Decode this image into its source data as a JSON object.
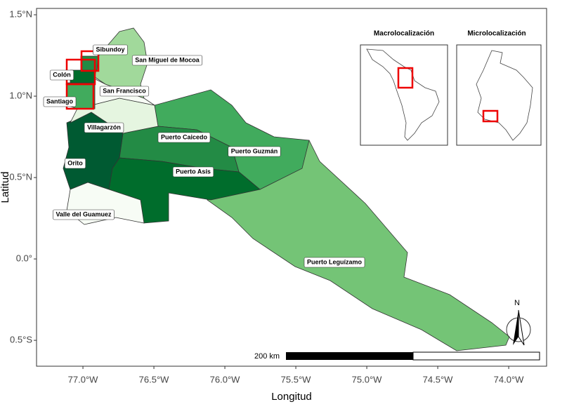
{
  "map": {
    "xlabel": "Longitud",
    "ylabel": "Latitud",
    "xlim": [
      -77.327,
      -73.733
    ],
    "ylim": [
      -0.659,
      1.539
    ],
    "xticks": [
      {
        "value": -77,
        "label": "77.0°W"
      },
      {
        "value": -76.5,
        "label": "76.5°W"
      },
      {
        "value": -76,
        "label": "76.0°W"
      },
      {
        "value": -75.5,
        "label": "75.5°W"
      },
      {
        "value": -75,
        "label": "75.0°W"
      },
      {
        "value": -74.5,
        "label": "74.5°W"
      },
      {
        "value": -74,
        "label": "74.0°W"
      }
    ],
    "yticks": [
      {
        "value": 1.5,
        "label": "1.5°N"
      },
      {
        "value": 1,
        "label": "1.0°N"
      },
      {
        "value": 0.5,
        "label": "0.5°N"
      },
      {
        "value": 0,
        "label": "0.0°"
      },
      {
        "value": -0.5,
        "label": "0.5°S"
      }
    ],
    "regions": [
      "Sibundoy",
      "San Miguel de Mocoa",
      "Colón",
      "San Francisco",
      "Santiago",
      "Villagarzón",
      "Puerto Caicedo",
      "Puerto Guzmán",
      "Orito",
      "Puerto Asís",
      "Valle del Guamuez",
      "Puerto Leguízamo"
    ],
    "insets": [
      "Macrolocalización",
      "Microlocalización"
    ],
    "scale_label": "200 km",
    "north": "N"
  }
}
